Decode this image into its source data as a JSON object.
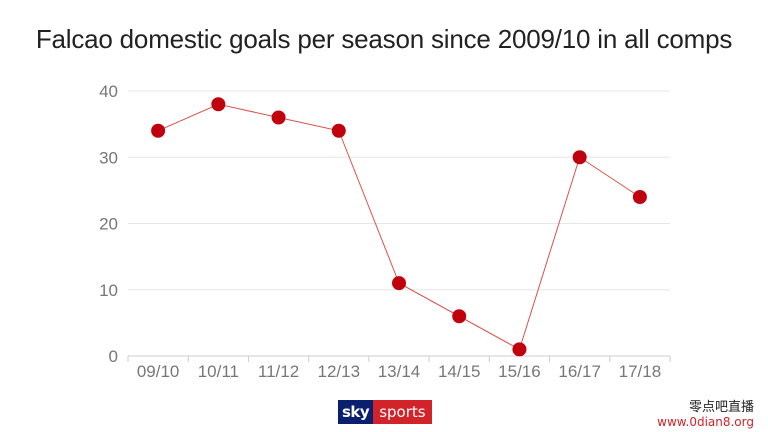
{
  "chart_data": {
    "type": "line",
    "title": "Falcao domestic goals per season since 2009/10 in all comps",
    "xlabel": "",
    "ylabel": "",
    "categories": [
      "09/10",
      "10/11",
      "11/12",
      "12/13",
      "13/14",
      "14/15",
      "15/16",
      "16/17",
      "17/18"
    ],
    "values": [
      34,
      38,
      36,
      34,
      11,
      6,
      1,
      30,
      24
    ],
    "ylim": [
      0,
      40
    ],
    "yticks": [
      0,
      10,
      20,
      30,
      40
    ],
    "grid": true,
    "legend": "none",
    "colors": {
      "marker": "#c0000c",
      "line": "#d9534f",
      "grid": "#e6e6e6",
      "axis": "#cccccc"
    }
  },
  "branding": {
    "logo_sky": "sky",
    "logo_sports": "sports",
    "watermark_cn": "零点吧直播",
    "watermark_url": "www.0dian8.org"
  }
}
